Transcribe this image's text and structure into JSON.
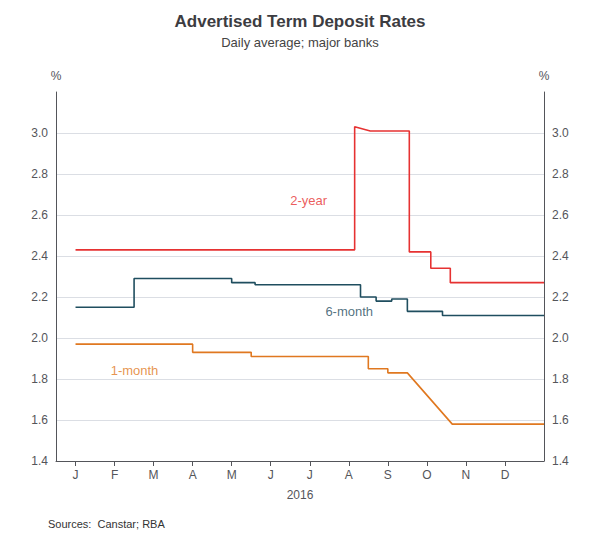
{
  "chart_data": {
    "type": "line",
    "title": "Advertised Term Deposit Rates",
    "subtitle": "Daily average; major banks",
    "x_label": "2016",
    "y_label": "%",
    "y2_label": "%",
    "source": "Sources:  Canstar; RBA",
    "grid": true,
    "xlim": [
      -0.5,
      12.0
    ],
    "xticks": [
      {
        "value": 0,
        "label": "J"
      },
      {
        "value": 1,
        "label": "F"
      },
      {
        "value": 2,
        "label": "M"
      },
      {
        "value": 3,
        "label": "A"
      },
      {
        "value": 4,
        "label": "M"
      },
      {
        "value": 5,
        "label": "J"
      },
      {
        "value": 6,
        "label": "J"
      },
      {
        "value": 7,
        "label": "A"
      },
      {
        "value": 8,
        "label": "S"
      },
      {
        "value": 9,
        "label": "O"
      },
      {
        "value": 10,
        "label": "N"
      },
      {
        "value": 11,
        "label": "D"
      }
    ],
    "ylim": [
      1.4,
      3.2
    ],
    "yticks": [
      1.4,
      1.6,
      1.8,
      {
        "value": 2.0,
        "label": "2.0"
      },
      2.2,
      2.4,
      2.6,
      2.8,
      {
        "value": 3.0,
        "label": "3.0"
      }
    ],
    "y2lim": [
      1.4,
      3.2
    ],
    "y2ticks": [
      1.4,
      1.6,
      1.8,
      {
        "value": 2.0,
        "label": "2.0"
      },
      2.2,
      2.4,
      2.6,
      2.8,
      {
        "value": 3.0,
        "label": "3.0"
      }
    ],
    "series": [
      {
        "name": "2-year",
        "color": "#e63232",
        "x": [
          0,
          4.3,
          4.3,
          7.15,
          7.15,
          7.55,
          7.55,
          8.55,
          8.55,
          9.1,
          9.1,
          9.6,
          9.6,
          12.0
        ],
        "values": [
          2.43,
          2.43,
          2.43,
          2.43,
          3.03,
          3.01,
          3.01,
          3.01,
          2.42,
          2.42,
          2.34,
          2.34,
          2.27,
          2.27
        ]
      },
      {
        "name": "6-month",
        "color": "#1f4e5f",
        "x": [
          0,
          1.5,
          1.5,
          4.0,
          4.0,
          4.6,
          4.6,
          7.3,
          7.3,
          7.7,
          7.7,
          8.1,
          8.1,
          8.5,
          8.5,
          9.4,
          9.4,
          12.0
        ],
        "values": [
          2.15,
          2.15,
          2.29,
          2.29,
          2.27,
          2.27,
          2.26,
          2.26,
          2.2,
          2.2,
          2.18,
          2.18,
          2.19,
          2.19,
          2.13,
          2.13,
          2.11,
          2.11
        ]
      },
      {
        "name": "1-month",
        "color": "#e07820",
        "x": [
          0,
          3.0,
          3.0,
          4.5,
          4.5,
          7.5,
          7.5,
          8.0,
          8.0,
          8.5,
          8.5,
          9.65,
          9.65,
          12.0
        ],
        "values": [
          1.97,
          1.97,
          1.93,
          1.93,
          1.91,
          1.91,
          1.85,
          1.85,
          1.83,
          1.83,
          1.83,
          1.58,
          1.58,
          1.58
        ]
      }
    ],
    "annotations": [
      {
        "text": "2-year",
        "x": 5.5,
        "y": 2.67,
        "color": "#e63232"
      },
      {
        "text": "6-month",
        "x": 6.4,
        "y": 2.13,
        "color": "#1f4e5f"
      },
      {
        "text": "1-month",
        "x": 0.9,
        "y": 1.84,
        "color": "#e07820"
      }
    ]
  }
}
